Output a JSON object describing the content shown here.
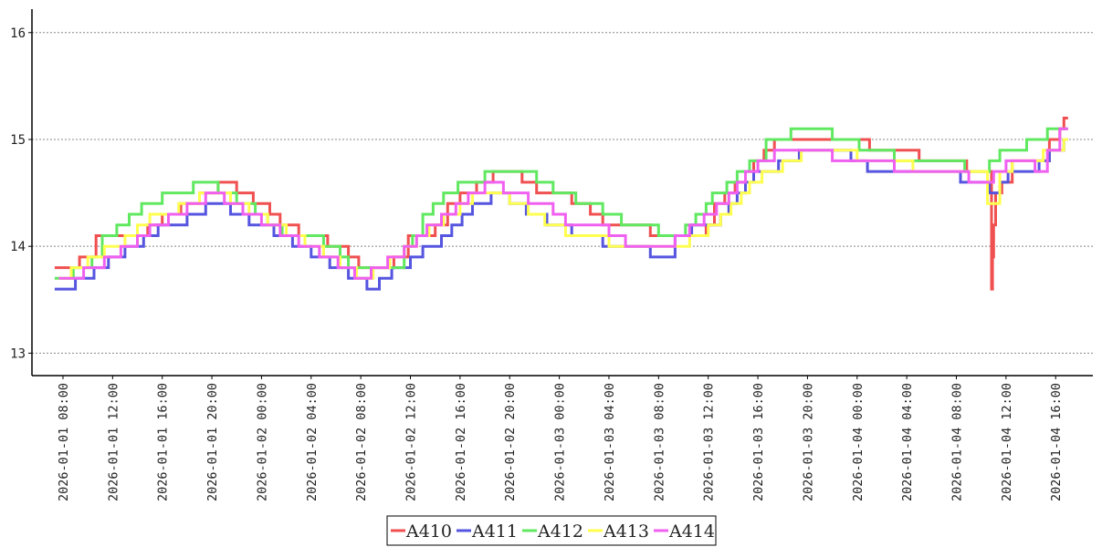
{
  "chart_data": {
    "type": "line",
    "step": true,
    "xlabel": "",
    "ylabel": "",
    "ylim": [
      12.79,
      16.22
    ],
    "xlim": [
      "2026-01-01 05:30",
      "2026-01-04 19:00"
    ],
    "yticks": [
      "13",
      "14",
      "15",
      "16"
    ],
    "xticks": [
      "2026-01-01 08:00",
      "2026-01-01 12:00",
      "2026-01-01 16:00",
      "2026-01-01 20:00",
      "2026-01-02 00:00",
      "2026-01-02 04:00",
      "2026-01-02 08:00",
      "2026-01-02 12:00",
      "2026-01-02 16:00",
      "2026-01-02 20:00",
      "2026-01-03 00:00",
      "2026-01-03 04:00",
      "2026-01-03 08:00",
      "2026-01-03 12:00",
      "2026-01-03 16:00",
      "2026-01-03 20:00",
      "2026-01-04 00:00",
      "2026-01-04 04:00",
      "2026-01-04 08:00",
      "2026-01-04 12:00",
      "2026-01-04 16:00"
    ],
    "grid": "horizontal dotted",
    "legend_position": "bottom-center",
    "series": [
      {
        "name": "A410",
        "color": "#f05050",
        "x": [
          "2026-01-01 07:20",
          "2026-01-01 08:15",
          "2026-01-01 09:20",
          "2026-01-01 10:40",
          "2026-01-01 12:30",
          "2026-01-01 13:40",
          "2026-01-01 14:50",
          "2026-01-01 16:00",
          "2026-01-01 17:30",
          "2026-01-01 19:00",
          "2026-01-01 20:30",
          "2026-01-01 22:00",
          "2026-01-01 23:20",
          "2026-01-02 00:40",
          "2026-01-02 01:30",
          "2026-01-02 03:00",
          "2026-01-02 04:30",
          "2026-01-02 05:20",
          "2026-01-02 07:00",
          "2026-01-02 07:50",
          "2026-01-02 09:30",
          "2026-01-02 10:40",
          "2026-01-02 11:50",
          "2026-01-02 13:10",
          "2026-01-02 14:00",
          "2026-01-02 15:00",
          "2026-01-02 16:00",
          "2026-01-02 17:20",
          "2026-01-02 18:40",
          "2026-01-02 19:50",
          "2026-01-02 21:00",
          "2026-01-02 22:10",
          "2026-01-02 23:20",
          "2026-01-03 01:00",
          "2026-01-03 02:30",
          "2026-01-03 03:30",
          "2026-01-03 05:00",
          "2026-01-03 07:20",
          "2026-01-03 09:00",
          "2026-01-03 10:20",
          "2026-01-03 11:50",
          "2026-01-03 12:30",
          "2026-01-03 13:20",
          "2026-01-03 14:10",
          "2026-01-03 15:00",
          "2026-01-03 15:40",
          "2026-01-03 16:30",
          "2026-01-03 17:20",
          "2026-01-03 18:20",
          "2026-01-03 19:20",
          "2026-01-03 20:20",
          "2026-01-03 22:30",
          "2026-01-04 01:00",
          "2026-01-04 04:00",
          "2026-01-04 05:00",
          "2026-01-04 07:30",
          "2026-01-04 08:10",
          "2026-01-04 08:50",
          "2026-01-04 09:30",
          "2026-01-04 10:40",
          "2026-01-04 10:50",
          "2026-01-04 10:55",
          "2026-01-04 11:00",
          "2026-01-04 11:10",
          "2026-01-04 11:20",
          "2026-01-04 11:40",
          "2026-01-04 12:30",
          "2026-01-04 13:40",
          "2026-01-04 14:40",
          "2026-01-04 15:30",
          "2026-01-04 16:20",
          "2026-01-04 16:40",
          "2026-01-04 17:00"
        ],
        "y": [
          13.8,
          13.8,
          13.9,
          14.1,
          14.1,
          14.1,
          14.2,
          14.3,
          14.4,
          14.5,
          14.6,
          14.5,
          14.4,
          14.3,
          14.2,
          14.1,
          14.1,
          14.0,
          13.9,
          13.8,
          13.8,
          13.9,
          14.1,
          14.1,
          14.2,
          14.4,
          14.5,
          14.6,
          14.7,
          14.7,
          14.6,
          14.5,
          14.5,
          14.4,
          14.3,
          14.2,
          14.2,
          14.1,
          14.1,
          14.1,
          14.2,
          14.4,
          14.5,
          14.6,
          14.7,
          14.8,
          14.9,
          15.0,
          15.0,
          15.0,
          15.0,
          15.0,
          14.9,
          14.9,
          14.8,
          14.8,
          14.8,
          14.7,
          14.7,
          14.7,
          13.6,
          13.9,
          14.2,
          14.5,
          14.5,
          14.6,
          14.8,
          14.8,
          14.8,
          15.0,
          15.1,
          15.2,
          15.2
        ]
      },
      {
        "name": "A411",
        "color": "#5555e0",
        "x": [
          "2026-01-01 07:20",
          "2026-01-01 08:20",
          "2026-01-01 09:00",
          "2026-01-01 10:30",
          "2026-01-01 11:40",
          "2026-01-01 13:00",
          "2026-01-01 14:30",
          "2026-01-01 15:40",
          "2026-01-01 18:00",
          "2026-01-01 19:30",
          "2026-01-01 21:30",
          "2026-01-01 23:00",
          "2026-01-02 01:00",
          "2026-01-02 02:30",
          "2026-01-02 04:00",
          "2026-01-02 05:30",
          "2026-01-02 07:00",
          "2026-01-02 08:30",
          "2026-01-02 09:30",
          "2026-01-02 10:30",
          "2026-01-02 12:00",
          "2026-01-02 13:00",
          "2026-01-02 14:30",
          "2026-01-02 15:20",
          "2026-01-02 16:10",
          "2026-01-02 17:00",
          "2026-01-02 18:30",
          "2026-01-02 20:00",
          "2026-01-02 21:20",
          "2026-01-02 23:00",
          "2026-01-03 01:00",
          "2026-01-03 03:30",
          "2026-01-03 05:20",
          "2026-01-03 07:20",
          "2026-01-03 09:20",
          "2026-01-03 10:40",
          "2026-01-03 11:40",
          "2026-01-03 13:00",
          "2026-01-03 13:40",
          "2026-01-03 14:20",
          "2026-01-03 15:00",
          "2026-01-03 15:40",
          "2026-01-03 17:40",
          "2026-01-03 18:30",
          "2026-01-03 19:20",
          "2026-01-03 21:20",
          "2026-01-03 23:30",
          "2026-01-04 00:50",
          "2026-01-04 04:00",
          "2026-01-04 08:20",
          "2026-01-04 10:40",
          "2026-01-04 11:00",
          "2026-01-04 11:30",
          "2026-01-04 12:10",
          "2026-01-04 14:40",
          "2026-01-04 15:30",
          "2026-01-04 16:40",
          "2026-01-04 17:00"
        ],
        "y": [
          13.6,
          13.6,
          13.7,
          13.8,
          13.9,
          14.0,
          14.1,
          14.2,
          14.3,
          14.4,
          14.3,
          14.2,
          14.1,
          14.0,
          13.9,
          13.8,
          13.7,
          13.6,
          13.7,
          13.8,
          13.9,
          14.0,
          14.1,
          14.2,
          14.3,
          14.4,
          14.5,
          14.4,
          14.3,
          14.2,
          14.1,
          14.0,
          14.0,
          13.9,
          14.1,
          14.2,
          14.2,
          14.3,
          14.4,
          14.5,
          14.6,
          14.7,
          14.8,
          14.8,
          14.9,
          14.9,
          14.8,
          14.7,
          14.7,
          14.6,
          14.5,
          14.5,
          14.6,
          14.7,
          14.8,
          14.9,
          15.0,
          15.0
        ]
      },
      {
        "name": "A412",
        "color": "#60e860",
        "x": [
          "2026-01-01 07:20",
          "2026-01-01 07:50",
          "2026-01-01 08:50",
          "2026-01-01 10:20",
          "2026-01-01 11:10",
          "2026-01-01 12:20",
          "2026-01-01 13:20",
          "2026-01-01 14:20",
          "2026-01-01 16:00",
          "2026-01-01 18:30",
          "2026-01-01 20:30",
          "2026-01-01 22:00",
          "2026-01-01 23:30",
          "2026-01-02 00:30",
          "2026-01-02 01:40",
          "2026-01-02 02:30",
          "2026-01-02 05:00",
          "2026-01-02 06:20",
          "2026-01-02 07:00",
          "2026-01-02 07:50",
          "2026-01-02 09:00",
          "2026-01-02 11:30",
          "2026-01-02 12:10",
          "2026-01-02 13:00",
          "2026-01-02 13:50",
          "2026-01-02 14:40",
          "2026-01-02 15:50",
          "2026-01-02 18:00",
          "2026-01-02 22:10",
          "2026-01-02 23:30",
          "2026-01-03 01:20",
          "2026-01-03 03:30",
          "2026-01-03 05:00",
          "2026-01-03 08:00",
          "2026-01-03 10:10",
          "2026-01-03 11:00",
          "2026-01-03 11:50",
          "2026-01-03 12:20",
          "2026-01-03 13:30",
          "2026-01-03 14:20",
          "2026-01-03 15:20",
          "2026-01-03 16:40",
          "2026-01-03 18:40",
          "2026-01-03 20:20",
          "2026-01-03 22:00",
          "2026-01-04 00:10",
          "2026-01-04 01:30",
          "2026-01-04 03:00",
          "2026-01-04 07:50",
          "2026-01-04 08:40",
          "2026-01-04 10:40",
          "2026-01-04 11:30",
          "2026-01-04 12:20",
          "2026-01-04 13:40",
          "2026-01-04 14:40",
          "2026-01-04 15:20",
          "2026-01-04 16:00",
          "2026-01-04 17:00"
        ],
        "y": [
          13.7,
          13.7,
          13.8,
          13.9,
          14.1,
          14.2,
          14.3,
          14.4,
          14.5,
          14.6,
          14.5,
          14.4,
          14.3,
          14.2,
          14.1,
          14.1,
          14.0,
          13.9,
          13.8,
          13.8,
          13.8,
          14.0,
          14.1,
          14.3,
          14.4,
          14.5,
          14.6,
          14.7,
          14.6,
          14.5,
          14.4,
          14.3,
          14.2,
          14.1,
          14.2,
          14.3,
          14.4,
          14.5,
          14.6,
          14.7,
          14.8,
          15.0,
          15.1,
          15.1,
          15.0,
          14.9,
          14.9,
          14.8,
          14.8,
          14.7,
          14.8,
          14.9,
          14.9,
          15.0,
          15.0,
          15.1,
          15.1,
          15.1
        ]
      },
      {
        "name": "A413",
        "color": "#ffff50",
        "x": [
          "2026-01-01 07:40",
          "2026-01-01 08:40",
          "2026-01-01 10:00",
          "2026-01-01 11:20",
          "2026-01-01 13:00",
          "2026-01-01 14:00",
          "2026-01-01 15:00",
          "2026-01-01 16:00",
          "2026-01-01 17:20",
          "2026-01-01 19:00",
          "2026-01-01 21:30",
          "2026-01-01 23:00",
          "2026-01-02 00:30",
          "2026-01-02 02:00",
          "2026-01-02 03:30",
          "2026-01-02 05:00",
          "2026-01-02 06:20",
          "2026-01-02 07:40",
          "2026-01-02 09:00",
          "2026-01-02 10:20",
          "2026-01-02 11:30",
          "2026-01-02 12:30",
          "2026-01-02 13:30",
          "2026-01-02 14:40",
          "2026-01-02 16:00",
          "2026-01-02 17:00",
          "2026-01-02 18:40",
          "2026-01-02 20:00",
          "2026-01-02 21:30",
          "2026-01-02 22:50",
          "2026-01-03 00:30",
          "2026-01-03 02:20",
          "2026-01-03 04:00",
          "2026-01-03 05:20",
          "2026-01-03 09:20",
          "2026-01-03 10:30",
          "2026-01-03 12:00",
          "2026-01-03 13:00",
          "2026-01-03 13:50",
          "2026-01-03 14:40",
          "2026-01-03 15:20",
          "2026-01-03 16:20",
          "2026-01-03 18:00",
          "2026-01-03 19:30",
          "2026-01-03 22:30",
          "2026-01-04 00:00",
          "2026-01-04 01:30",
          "2026-01-04 03:00",
          "2026-01-04 04:30",
          "2026-01-04 10:30",
          "2026-01-04 11:30",
          "2026-01-04 12:30",
          "2026-01-04 13:40",
          "2026-01-04 15:00",
          "2026-01-04 16:40",
          "2026-01-04 17:00"
        ],
        "y": [
          13.7,
          13.8,
          13.9,
          14.0,
          14.1,
          14.2,
          14.3,
          14.3,
          14.4,
          14.5,
          14.4,
          14.3,
          14.2,
          14.1,
          14.0,
          13.9,
          13.8,
          13.7,
          13.8,
          13.9,
          14.0,
          14.1,
          14.2,
          14.3,
          14.4,
          14.5,
          14.5,
          14.4,
          14.3,
          14.2,
          14.1,
          14.1,
          14.0,
          14.0,
          14.0,
          14.1,
          14.2,
          14.3,
          14.4,
          14.5,
          14.6,
          14.7,
          14.8,
          14.9,
          14.9,
          14.8,
          14.8,
          14.8,
          14.7,
          14.4,
          14.7,
          14.8,
          14.8,
          14.9,
          15.0,
          15.0
        ]
      },
      {
        "name": "A414",
        "color": "#f060f0",
        "x": [
          "2026-01-01 07:40",
          "2026-01-01 08:30",
          "2026-01-01 09:40",
          "2026-01-01 11:20",
          "2026-01-01 12:40",
          "2026-01-01 14:00",
          "2026-01-01 15:00",
          "2026-01-01 16:30",
          "2026-01-01 18:00",
          "2026-01-01 19:30",
          "2026-01-01 21:00",
          "2026-01-01 22:30",
          "2026-01-02 00:00",
          "2026-01-02 01:30",
          "2026-01-02 03:00",
          "2026-01-02 04:40",
          "2026-01-02 06:10",
          "2026-01-02 07:30",
          "2026-01-02 08:50",
          "2026-01-02 10:10",
          "2026-01-02 11:30",
          "2026-01-02 12:30",
          "2026-01-02 13:20",
          "2026-01-02 14:30",
          "2026-01-02 15:40",
          "2026-01-02 16:40",
          "2026-01-02 18:00",
          "2026-01-02 19:30",
          "2026-01-02 21:30",
          "2026-01-02 23:30",
          "2026-01-03 00:30",
          "2026-01-03 02:30",
          "2026-01-03 04:00",
          "2026-01-03 05:20",
          "2026-01-03 09:20",
          "2026-01-03 10:30",
          "2026-01-03 11:40",
          "2026-01-03 12:40",
          "2026-01-03 13:40",
          "2026-01-03 14:20",
          "2026-01-03 15:00",
          "2026-01-03 16:00",
          "2026-01-03 17:20",
          "2026-01-03 18:40",
          "2026-01-03 22:00",
          "2026-01-04 00:00",
          "2026-01-04 01:30",
          "2026-01-04 03:00",
          "2026-01-04 08:20",
          "2026-01-04 09:00",
          "2026-01-04 11:00",
          "2026-01-04 12:00",
          "2026-01-04 13:20",
          "2026-01-04 14:20",
          "2026-01-04 15:20",
          "2026-01-04 16:20",
          "2026-01-04 17:00"
        ],
        "y": [
          13.7,
          13.7,
          13.8,
          13.9,
          14.0,
          14.1,
          14.2,
          14.3,
          14.4,
          14.5,
          14.4,
          14.3,
          14.2,
          14.1,
          14.0,
          13.9,
          13.8,
          13.7,
          13.8,
          13.9,
          14.0,
          14.1,
          14.2,
          14.3,
          14.4,
          14.5,
          14.6,
          14.5,
          14.4,
          14.3,
          14.2,
          14.2,
          14.1,
          14.0,
          14.1,
          14.2,
          14.3,
          14.4,
          14.5,
          14.6,
          14.7,
          14.8,
          14.9,
          14.9,
          14.8,
          14.8,
          14.8,
          14.7,
          14.7,
          14.6,
          14.7,
          14.8,
          14.8,
          14.7,
          14.9,
          15.1,
          15.1
        ]
      }
    ]
  }
}
